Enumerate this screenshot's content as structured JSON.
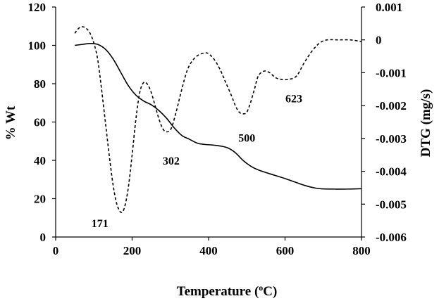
{
  "chart_data": {
    "type": "line",
    "xlabel": {
      "before": "Temperature (",
      "sup": "o",
      "after": "C)"
    },
    "ylabel": "% Wt",
    "y2label": "DTG (mg/s)",
    "xlim": [
      0,
      800
    ],
    "ylim": [
      0,
      120
    ],
    "y2lim": [
      -0.006,
      0.001
    ],
    "x_ticks": [
      "0",
      "200",
      "400",
      "600",
      "800"
    ],
    "x_tick_values": [
      0,
      200,
      400,
      600,
      800
    ],
    "y_ticks": [
      "0",
      "20",
      "40",
      "60",
      "80",
      "100",
      "120"
    ],
    "y_tick_values": [
      0,
      20,
      40,
      60,
      80,
      100,
      120
    ],
    "y2_ticks": [
      "0.001",
      "0",
      "-0.001",
      "-0.002",
      "-0.003",
      "-0.004",
      "-0.005",
      "-0.006"
    ],
    "y2_tick_values": [
      0.001,
      0,
      -0.001,
      -0.002,
      -0.003,
      -0.004,
      -0.005,
      -0.006
    ],
    "grid": false,
    "series": [
      {
        "axis": "left",
        "style": "solid",
        "x": [
          50,
          70,
          90,
          110,
          130,
          150,
          170,
          190,
          210,
          230,
          250,
          270,
          290,
          310,
          330,
          350,
          370,
          390,
          410,
          430,
          450,
          470,
          490,
          510,
          530,
          560,
          600,
          650,
          680,
          700,
          730,
          760,
          800
        ],
        "y": [
          100,
          100.5,
          101,
          100.5,
          98,
          93,
          86,
          79,
          74,
          71,
          69,
          66,
          62,
          57,
          53,
          51,
          49,
          48.3,
          48,
          47.5,
          46.5,
          44,
          40,
          37,
          35,
          33,
          30.5,
          27,
          25.5,
          25.1,
          25,
          25,
          25.2
        ]
      },
      {
        "axis": "right",
        "style": "dashed",
        "x": [
          50,
          60,
          70,
          80,
          90,
          100,
          110,
          120,
          130,
          140,
          150,
          160,
          171,
          180,
          190,
          200,
          210,
          220,
          230,
          240,
          250,
          260,
          270,
          280,
          290,
          302,
          315,
          330,
          345,
          360,
          375,
          390,
          400,
          415,
          430,
          445,
          460,
          470,
          480,
          490,
          500,
          510,
          520,
          530,
          545,
          560,
          575,
          590,
          610,
          630,
          650,
          670,
          690,
          710,
          740,
          770,
          800
        ],
        "y": [
          0.0002,
          0.00035,
          0.0004,
          0.00035,
          0.0002,
          -0.0001,
          -0.0006,
          -0.0015,
          -0.0025,
          -0.0035,
          -0.0044,
          -0.005,
          -0.00525,
          -0.0051,
          -0.0045,
          -0.0035,
          -0.0024,
          -0.0016,
          -0.0013,
          -0.00135,
          -0.0016,
          -0.002,
          -0.0024,
          -0.0027,
          -0.0028,
          -0.0027,
          -0.0022,
          -0.0015,
          -0.0009,
          -0.0006,
          -0.00045,
          -0.0004,
          -0.00042,
          -0.0006,
          -0.0009,
          -0.0013,
          -0.0017,
          -0.002,
          -0.0022,
          -0.00225,
          -0.0022,
          -0.0019,
          -0.0015,
          -0.0011,
          -0.00095,
          -0.001,
          -0.00115,
          -0.0012,
          -0.0012,
          -0.0011,
          -0.0007,
          -0.00035,
          -0.0001,
          0.0,
          0.0,
          0.0,
          -5e-05
        ]
      }
    ],
    "annotations": [
      {
        "text": "171",
        "x": 171,
        "y2": -0.0057
      },
      {
        "text": "302",
        "x": 302,
        "y2": -0.0038
      },
      {
        "text": "500",
        "x": 500,
        "y2": -0.0031
      },
      {
        "text": "623",
        "x": 623,
        "y2": -0.0019
      }
    ]
  }
}
